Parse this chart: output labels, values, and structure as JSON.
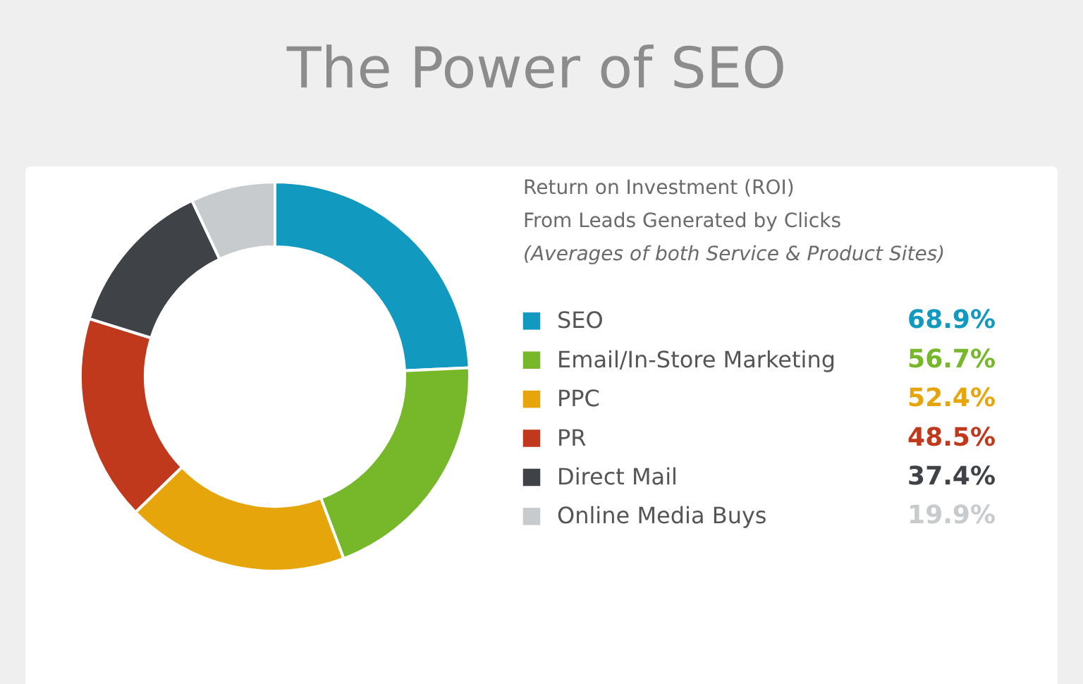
{
  "chart_data": {
    "type": "donut",
    "title": "The Power of SEO",
    "subtitle": "Return on Investment (ROI) From Leads Generated by Clicks",
    "annotations": [
      "(Averages of both Service & Product Sites)"
    ],
    "categories": [
      "SEO",
      "Email/In-Store Marketing",
      "PPC",
      "PR",
      "Direct Mail",
      "Online Media Buys"
    ],
    "values": [
      68.9,
      56.7,
      52.4,
      48.5,
      37.4,
      19.9
    ],
    "colors": [
      "#1199c0",
      "#76b82a",
      "#e6a60b",
      "#c0391c",
      "#3f4246",
      "#c8cbce"
    ],
    "value_labels": [
      "68.9%",
      "56.7%",
      "52.4%",
      "48.5%",
      "37.4%",
      "19.9%"
    ],
    "legend": "right"
  }
}
